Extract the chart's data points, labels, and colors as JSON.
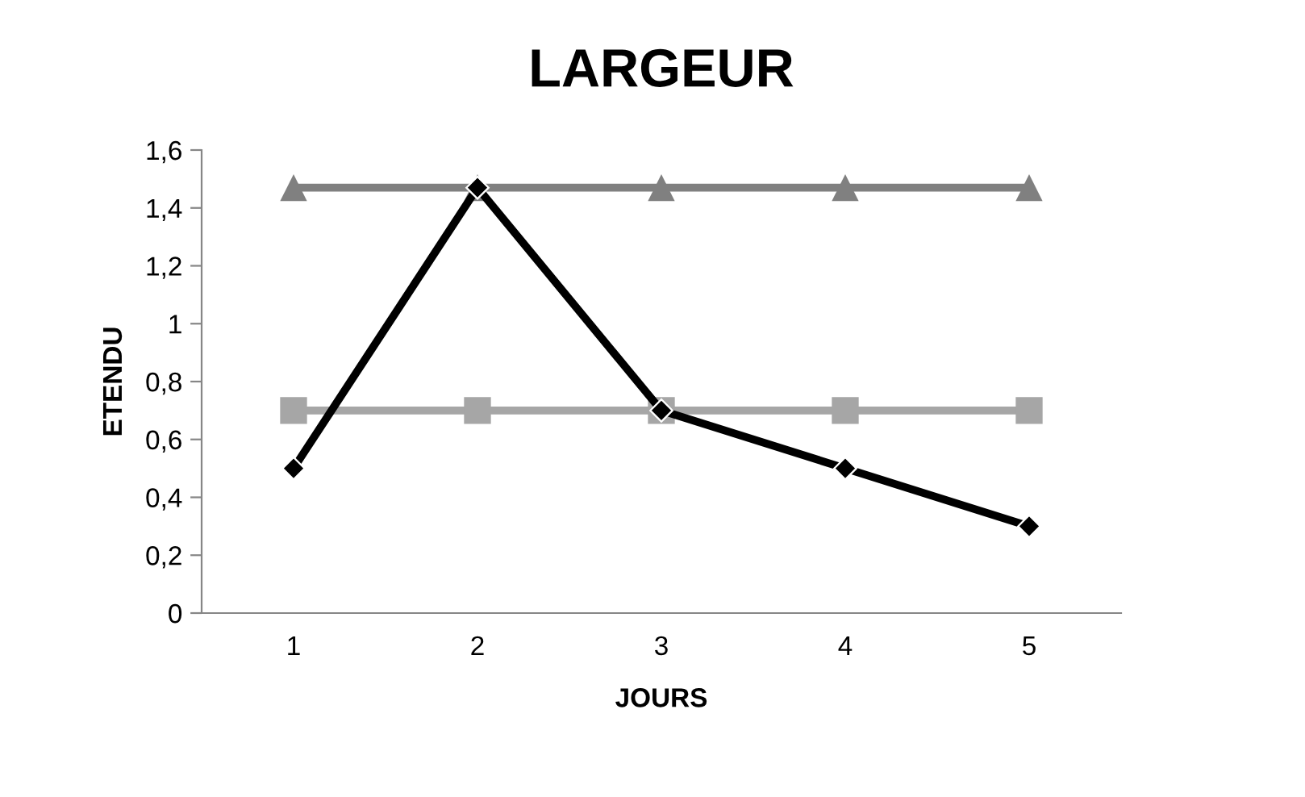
{
  "chart_data": {
    "type": "line",
    "title": "LARGEUR",
    "xlabel": "JOURS",
    "ylabel": "ETENDU",
    "categories": [
      "1",
      "2",
      "3",
      "4",
      "5"
    ],
    "series": [
      {
        "color": "#808080",
        "marker": "triangle",
        "values": [
          1.47,
          1.47,
          1.47,
          1.47,
          1.47
        ]
      },
      {
        "color": "#a6a6a6",
        "marker": "square",
        "values": [
          0.7,
          0.7,
          0.7,
          0.7,
          0.7
        ]
      },
      {
        "color": "#000000",
        "marker": "diamond",
        "values": [
          0.5,
          1.47,
          0.7,
          0.5,
          0.3
        ]
      }
    ],
    "ylim": [
      0,
      1.6
    ],
    "yticks": [
      0,
      {
        "value": 0.2,
        "label": "0,2"
      },
      {
        "value": 0.4,
        "label": "0,4"
      },
      {
        "value": 0.6,
        "label": "0,6"
      },
      {
        "value": 0.8,
        "label": "0,8"
      },
      1,
      {
        "value": 1.2,
        "label": "1,2"
      },
      {
        "value": 1.4,
        "label": "1,4"
      },
      {
        "value": 1.6,
        "label": "1,6"
      }
    ],
    "grid": false,
    "legend": false,
    "line_style": "solid"
  }
}
